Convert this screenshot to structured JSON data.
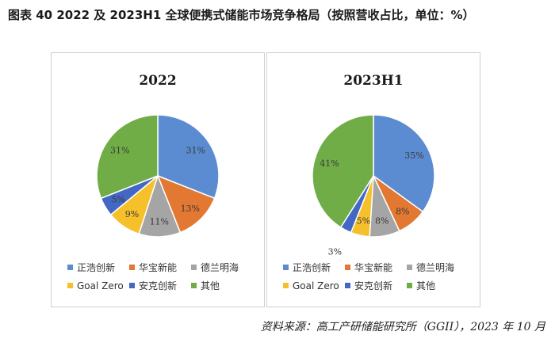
{
  "figure_title": "图表 40  2022 及 2023H1 全球便携式储能市场竞争格局（按照营收占比，单位：%）",
  "source": "资料来源：高工产研储能研究所（GGII），2023 年 10 月",
  "chart_data": [
    {
      "type": "pie",
      "title": "2022",
      "categories": [
        "正浩创新",
        "华宝新能",
        "德兰明海",
        "Goal Zero",
        "安克创新",
        "其他"
      ],
      "values": [
        31,
        13,
        11,
        9,
        5,
        31
      ],
      "labels": [
        "31%",
        "13%",
        "11%",
        "9%",
        "5%",
        "31%"
      ],
      "colors": [
        "#5b8bd1",
        "#e27832",
        "#a5a5a5",
        "#f6c02a",
        "#4267c4",
        "#70ad46"
      ]
    },
    {
      "type": "pie",
      "title": "2023H1",
      "categories": [
        "正浩创新",
        "华宝新能",
        "德兰明海",
        "Goal Zero",
        "安克创新",
        "其他"
      ],
      "values": [
        35,
        8,
        8,
        5,
        3,
        41
      ],
      "labels": [
        "35%",
        "8%",
        "8%",
        "5%",
        "3%",
        "41%"
      ],
      "colors": [
        "#5b8bd1",
        "#e27832",
        "#a5a5a5",
        "#f6c02a",
        "#4267c4",
        "#70ad46"
      ]
    }
  ]
}
